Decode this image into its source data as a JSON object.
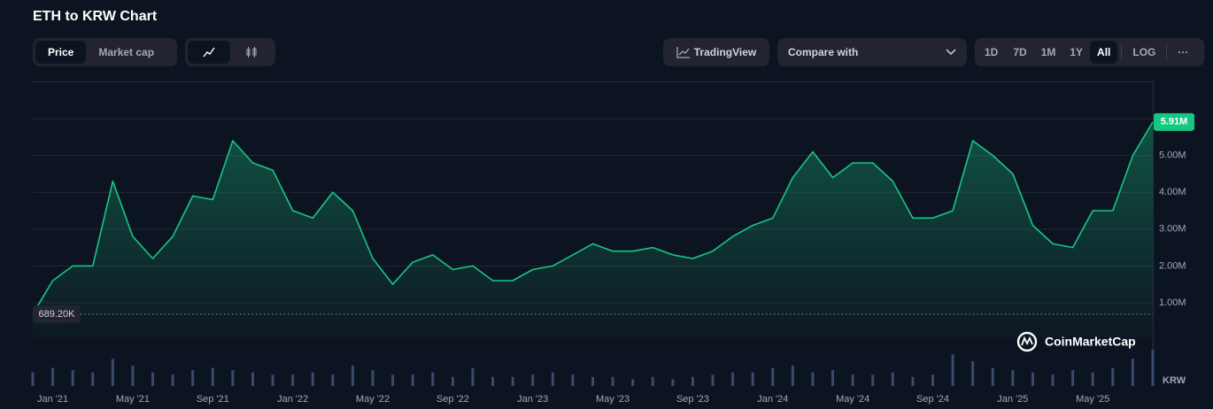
{
  "header": {
    "title": "ETH to KRW Chart"
  },
  "controls": {
    "view": [
      "Price",
      "Market cap"
    ],
    "tradingview": "TradingView",
    "compare": "Compare with",
    "ranges": [
      "1D",
      "7D",
      "1M",
      "1Y",
      "All"
    ],
    "log": "LOG",
    "more": "···"
  },
  "watermark": "CoinMarketCap",
  "chart_data": {
    "type": "area",
    "currency_label": "KRW",
    "x": [
      "2020-12",
      "2021-01",
      "2021-02",
      "2021-03",
      "2021-04",
      "2021-05",
      "2021-06",
      "2021-07",
      "2021-08",
      "2021-09",
      "2021-10",
      "2021-11",
      "2021-12",
      "2022-01",
      "2022-02",
      "2022-03",
      "2022-04",
      "2022-05",
      "2022-06",
      "2022-07",
      "2022-08",
      "2022-09",
      "2022-10",
      "2022-11",
      "2022-12",
      "2023-01",
      "2023-02",
      "2023-03",
      "2023-04",
      "2023-05",
      "2023-06",
      "2023-07",
      "2023-08",
      "2023-09",
      "2023-10",
      "2023-11",
      "2023-12",
      "2024-01",
      "2024-02",
      "2024-03",
      "2024-04",
      "2024-05",
      "2024-06",
      "2024-07",
      "2024-08",
      "2024-09",
      "2024-10",
      "2024-11",
      "2024-12",
      "2025-01",
      "2025-02",
      "2025-03",
      "2025-04",
      "2025-05",
      "2025-06",
      "2025-07",
      "2025-08"
    ],
    "series": [
      {
        "name": "Price",
        "color": "#16c784",
        "values": [
          689200,
          1600000,
          2000000,
          2000000,
          4300000,
          2800000,
          2200000,
          2800000,
          3900000,
          3800000,
          5400000,
          4800000,
          4600000,
          3500000,
          3300000,
          4000000,
          3500000,
          2200000,
          1500000,
          2100000,
          2300000,
          1900000,
          2000000,
          1600000,
          1600000,
          1900000,
          2000000,
          2300000,
          2600000,
          2400000,
          2400000,
          2500000,
          2300000,
          2200000,
          2400000,
          2800000,
          3100000,
          3300000,
          4400000,
          5100000,
          4400000,
          4800000,
          4800000,
          4300000,
          3300000,
          3300000,
          3500000,
          5400000,
          5000000,
          4500000,
          3100000,
          2600000,
          2500000,
          3500000,
          3500000,
          5000000,
          5910000
        ]
      },
      {
        "name": "Volume",
        "color": "#3a4a6e",
        "axis": "y2",
        "values": [
          30,
          40,
          35,
          30,
          60,
          45,
          30,
          25,
          35,
          40,
          35,
          30,
          25,
          25,
          30,
          25,
          45,
          35,
          25,
          25,
          30,
          20,
          40,
          20,
          20,
          25,
          30,
          25,
          20,
          20,
          15,
          20,
          15,
          20,
          25,
          30,
          30,
          40,
          45,
          30,
          35,
          25,
          25,
          30,
          20,
          25,
          70,
          55,
          40,
          35,
          30,
          25,
          35,
          30,
          40,
          60,
          80
        ]
      }
    ],
    "xlim": [
      "2020-12",
      "2025-08"
    ],
    "xticks": [
      {
        "value": "2021-01",
        "label": "Jan '21"
      },
      {
        "value": "2021-05",
        "label": "May '21"
      },
      {
        "value": "2021-09",
        "label": "Sep '21"
      },
      {
        "value": "2022-01",
        "label": "Jan '22"
      },
      {
        "value": "2022-05",
        "label": "May '22"
      },
      {
        "value": "2022-09",
        "label": "Sep '22"
      },
      {
        "value": "2023-01",
        "label": "Jan '23"
      },
      {
        "value": "2023-05",
        "label": "May '23"
      },
      {
        "value": "2023-09",
        "label": "Sep '23"
      },
      {
        "value": "2024-01",
        "label": "Jan '24"
      },
      {
        "value": "2024-05",
        "label": "May '24"
      },
      {
        "value": "2024-09",
        "label": "Sep '24"
      },
      {
        "value": "2025-01",
        "label": "Jan '25"
      },
      {
        "value": "2025-05",
        "label": "May '25"
      }
    ],
    "ylim": [
      0,
      7000000
    ],
    "yticks": [
      {
        "value": 1000000,
        "label": "1.00M"
      },
      {
        "value": 2000000,
        "label": "2.00M"
      },
      {
        "value": 3000000,
        "label": "3.00M"
      },
      {
        "value": 4000000,
        "label": "4.00M"
      },
      {
        "value": 5000000,
        "label": "5.00M"
      }
    ],
    "y2lim": [
      0,
      100
    ],
    "grid": true,
    "current_price": {
      "value": 5910000,
      "label": "5.91M"
    },
    "low_price": {
      "value": 689200,
      "label": "689.20K"
    }
  }
}
